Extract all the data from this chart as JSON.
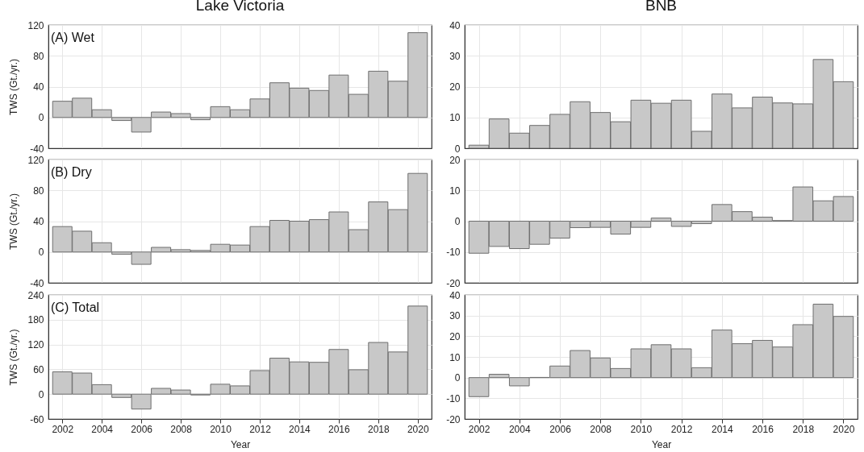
{
  "chart_data": [
    {
      "type": "bar",
      "title": "Lake Victoria",
      "ylabel": "TWS (Gt./yr.)",
      "annotations": [
        "(A) Wet"
      ],
      "x": [
        2002,
        2003,
        2004,
        2005,
        2006,
        2007,
        2008,
        2009,
        2010,
        2011,
        2012,
        2013,
        2014,
        2015,
        2016,
        2017,
        2018,
        2019,
        2020
      ],
      "values": [
        21,
        25,
        10,
        -4,
        -19,
        7,
        5,
        -3,
        14,
        10,
        24,
        45,
        38,
        35,
        55,
        30,
        60,
        47,
        110
      ],
      "color": "#c8c8c8",
      "xlim": [
        2001.5,
        2020.5
      ],
      "xticks": [
        2002,
        2004,
        2006,
        2008,
        2010,
        2012,
        2014,
        2016,
        2018,
        2020
      ],
      "ylim": [
        -40,
        120
      ],
      "yticks": [
        -40,
        0,
        40,
        80,
        120
      ],
      "grid": true,
      "tick_labels": "y"
    },
    {
      "type": "bar",
      "title": "BNB",
      "x": [
        2002,
        2003,
        2004,
        2005,
        2006,
        2007,
        2008,
        2009,
        2010,
        2011,
        2012,
        2013,
        2014,
        2015,
        2016,
        2017,
        2018,
        2019,
        2020
      ],
      "values": [
        1,
        9.5,
        4.9,
        7.4,
        11,
        15.1,
        11.6,
        8.6,
        15.6,
        14.6,
        15.6,
        5.5,
        17.6,
        13.1,
        16.6,
        14.7,
        14.4,
        28.8,
        21.6
      ],
      "color": "#c8c8c8",
      "xlim": [
        2001.5,
        2020.5
      ],
      "xticks": [
        2002,
        2004,
        2006,
        2008,
        2010,
        2012,
        2014,
        2016,
        2018,
        2020
      ],
      "ylim": [
        0,
        40
      ],
      "yticks": [
        0,
        10,
        20,
        30,
        40
      ],
      "grid": true,
      "tick_labels": "y"
    },
    {
      "type": "bar",
      "ylabel": "TWS (Gt./yr.)",
      "annotations": [
        "(B) Dry"
      ],
      "x": [
        2002,
        2003,
        2004,
        2005,
        2006,
        2007,
        2008,
        2009,
        2010,
        2011,
        2012,
        2013,
        2014,
        2015,
        2016,
        2017,
        2018,
        2019,
        2020
      ],
      "values": [
        33,
        27,
        12,
        -3,
        -16,
        6,
        3,
        2,
        10,
        9,
        33,
        41,
        40,
        42,
        52,
        29,
        65,
        55,
        102
      ],
      "color": "#c8c8c8",
      "xlim": [
        2001.5,
        2020.5
      ],
      "xticks": [
        2002,
        2004,
        2006,
        2008,
        2010,
        2012,
        2014,
        2016,
        2018,
        2020
      ],
      "ylim": [
        -40,
        120
      ],
      "yticks": [
        -40,
        0,
        40,
        80,
        120
      ],
      "grid": true,
      "tick_labels": "y"
    },
    {
      "type": "bar",
      "x": [
        2002,
        2003,
        2004,
        2005,
        2006,
        2007,
        2008,
        2009,
        2010,
        2011,
        2012,
        2013,
        2014,
        2015,
        2016,
        2017,
        2018,
        2019,
        2020
      ],
      "values": [
        -10.4,
        -8.2,
        -8.9,
        -7.5,
        -5.5,
        -2.1,
        -2,
        -4.2,
        -2,
        1,
        -1.7,
        -0.8,
        5.4,
        3.1,
        1.3,
        0.2,
        11.1,
        6.6,
        8
      ],
      "color": "#c8c8c8",
      "xlim": [
        2001.5,
        2020.5
      ],
      "xticks": [
        2002,
        2004,
        2006,
        2008,
        2010,
        2012,
        2014,
        2016,
        2018,
        2020
      ],
      "ylim": [
        -20,
        20
      ],
      "yticks": [
        -20,
        -10,
        0,
        10,
        20
      ],
      "grid": true,
      "tick_labels": "y"
    },
    {
      "type": "bar",
      "xlabel": "Year",
      "ylabel": "TWS (Gt./yr.)",
      "annotations": [
        "(C) Total"
      ],
      "x": [
        2002,
        2003,
        2004,
        2005,
        2006,
        2007,
        2008,
        2009,
        2010,
        2011,
        2012,
        2013,
        2014,
        2015,
        2016,
        2017,
        2018,
        2019,
        2020
      ],
      "values": [
        54,
        51,
        23,
        -8,
        -36,
        14,
        10,
        -2,
        24,
        20,
        57,
        87,
        78,
        77,
        108,
        59,
        125,
        102,
        213
      ],
      "color": "#c8c8c8",
      "xlim": [
        2001.5,
        2020.5
      ],
      "xticks": [
        2002,
        2004,
        2006,
        2008,
        2010,
        2012,
        2014,
        2016,
        2018,
        2020
      ],
      "ylim": [
        -60,
        240
      ],
      "yticks": [
        -60,
        0,
        60,
        120,
        180,
        240
      ],
      "grid": true
    },
    {
      "type": "bar",
      "xlabel": "Year",
      "x": [
        2002,
        2003,
        2004,
        2005,
        2006,
        2007,
        2008,
        2009,
        2010,
        2011,
        2012,
        2013,
        2014,
        2015,
        2016,
        2017,
        2018,
        2019,
        2020
      ],
      "values": [
        -9.2,
        1.6,
        -4,
        0.1,
        5.6,
        13.1,
        9.5,
        4.4,
        13.9,
        15.9,
        13.9,
        4.8,
        23,
        16.4,
        18,
        14.8,
        25.6,
        35.5,
        29.6
      ],
      "color": "#c8c8c8",
      "xlim": [
        2001.5,
        2020.5
      ],
      "xticks": [
        2002,
        2004,
        2006,
        2008,
        2010,
        2012,
        2014,
        2016,
        2018,
        2020
      ],
      "ylim": [
        -20,
        40
      ],
      "yticks": [
        -20,
        -10,
        0,
        10,
        20,
        30,
        40
      ],
      "grid": true
    }
  ]
}
